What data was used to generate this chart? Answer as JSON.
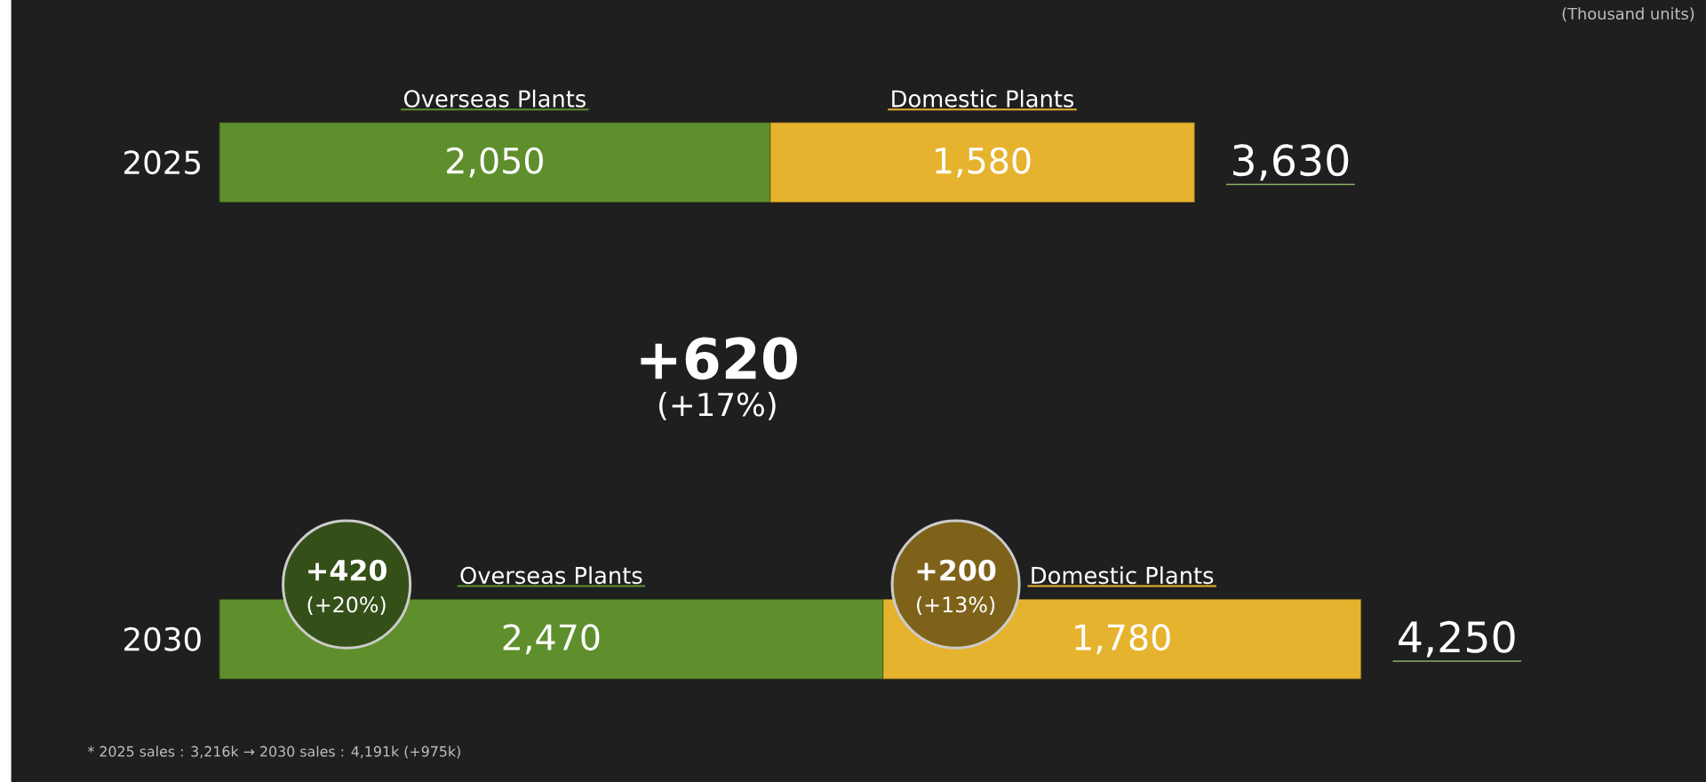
{
  "chart_data": {
    "type": "bar",
    "orientation": "horizontal",
    "stacked": true,
    "categories": [
      "2025",
      "2030"
    ],
    "series": [
      {
        "name": "Overseas Plants",
        "color": "#5f8f2c",
        "values": [
          2050,
          2470
        ],
        "value_labels": [
          "2,050",
          "2,470"
        ]
      },
      {
        "name": "Domestic Plants",
        "color": "#e6b32e",
        "values": [
          1580,
          1780
        ],
        "value_labels": [
          "1,580",
          "1,780"
        ]
      }
    ],
    "totals": [
      "3,630",
      "4,250"
    ],
    "tick_labels": "y",
    "annotations": [
      "(Thousand units)",
      "+620",
      "(+17%)",
      "+420",
      "(+20%)",
      "+200",
      "(+13%)",
      "* 2025 sales : 3,216k → 2030 sales : 4,191k (+975k)"
    ]
  }
}
